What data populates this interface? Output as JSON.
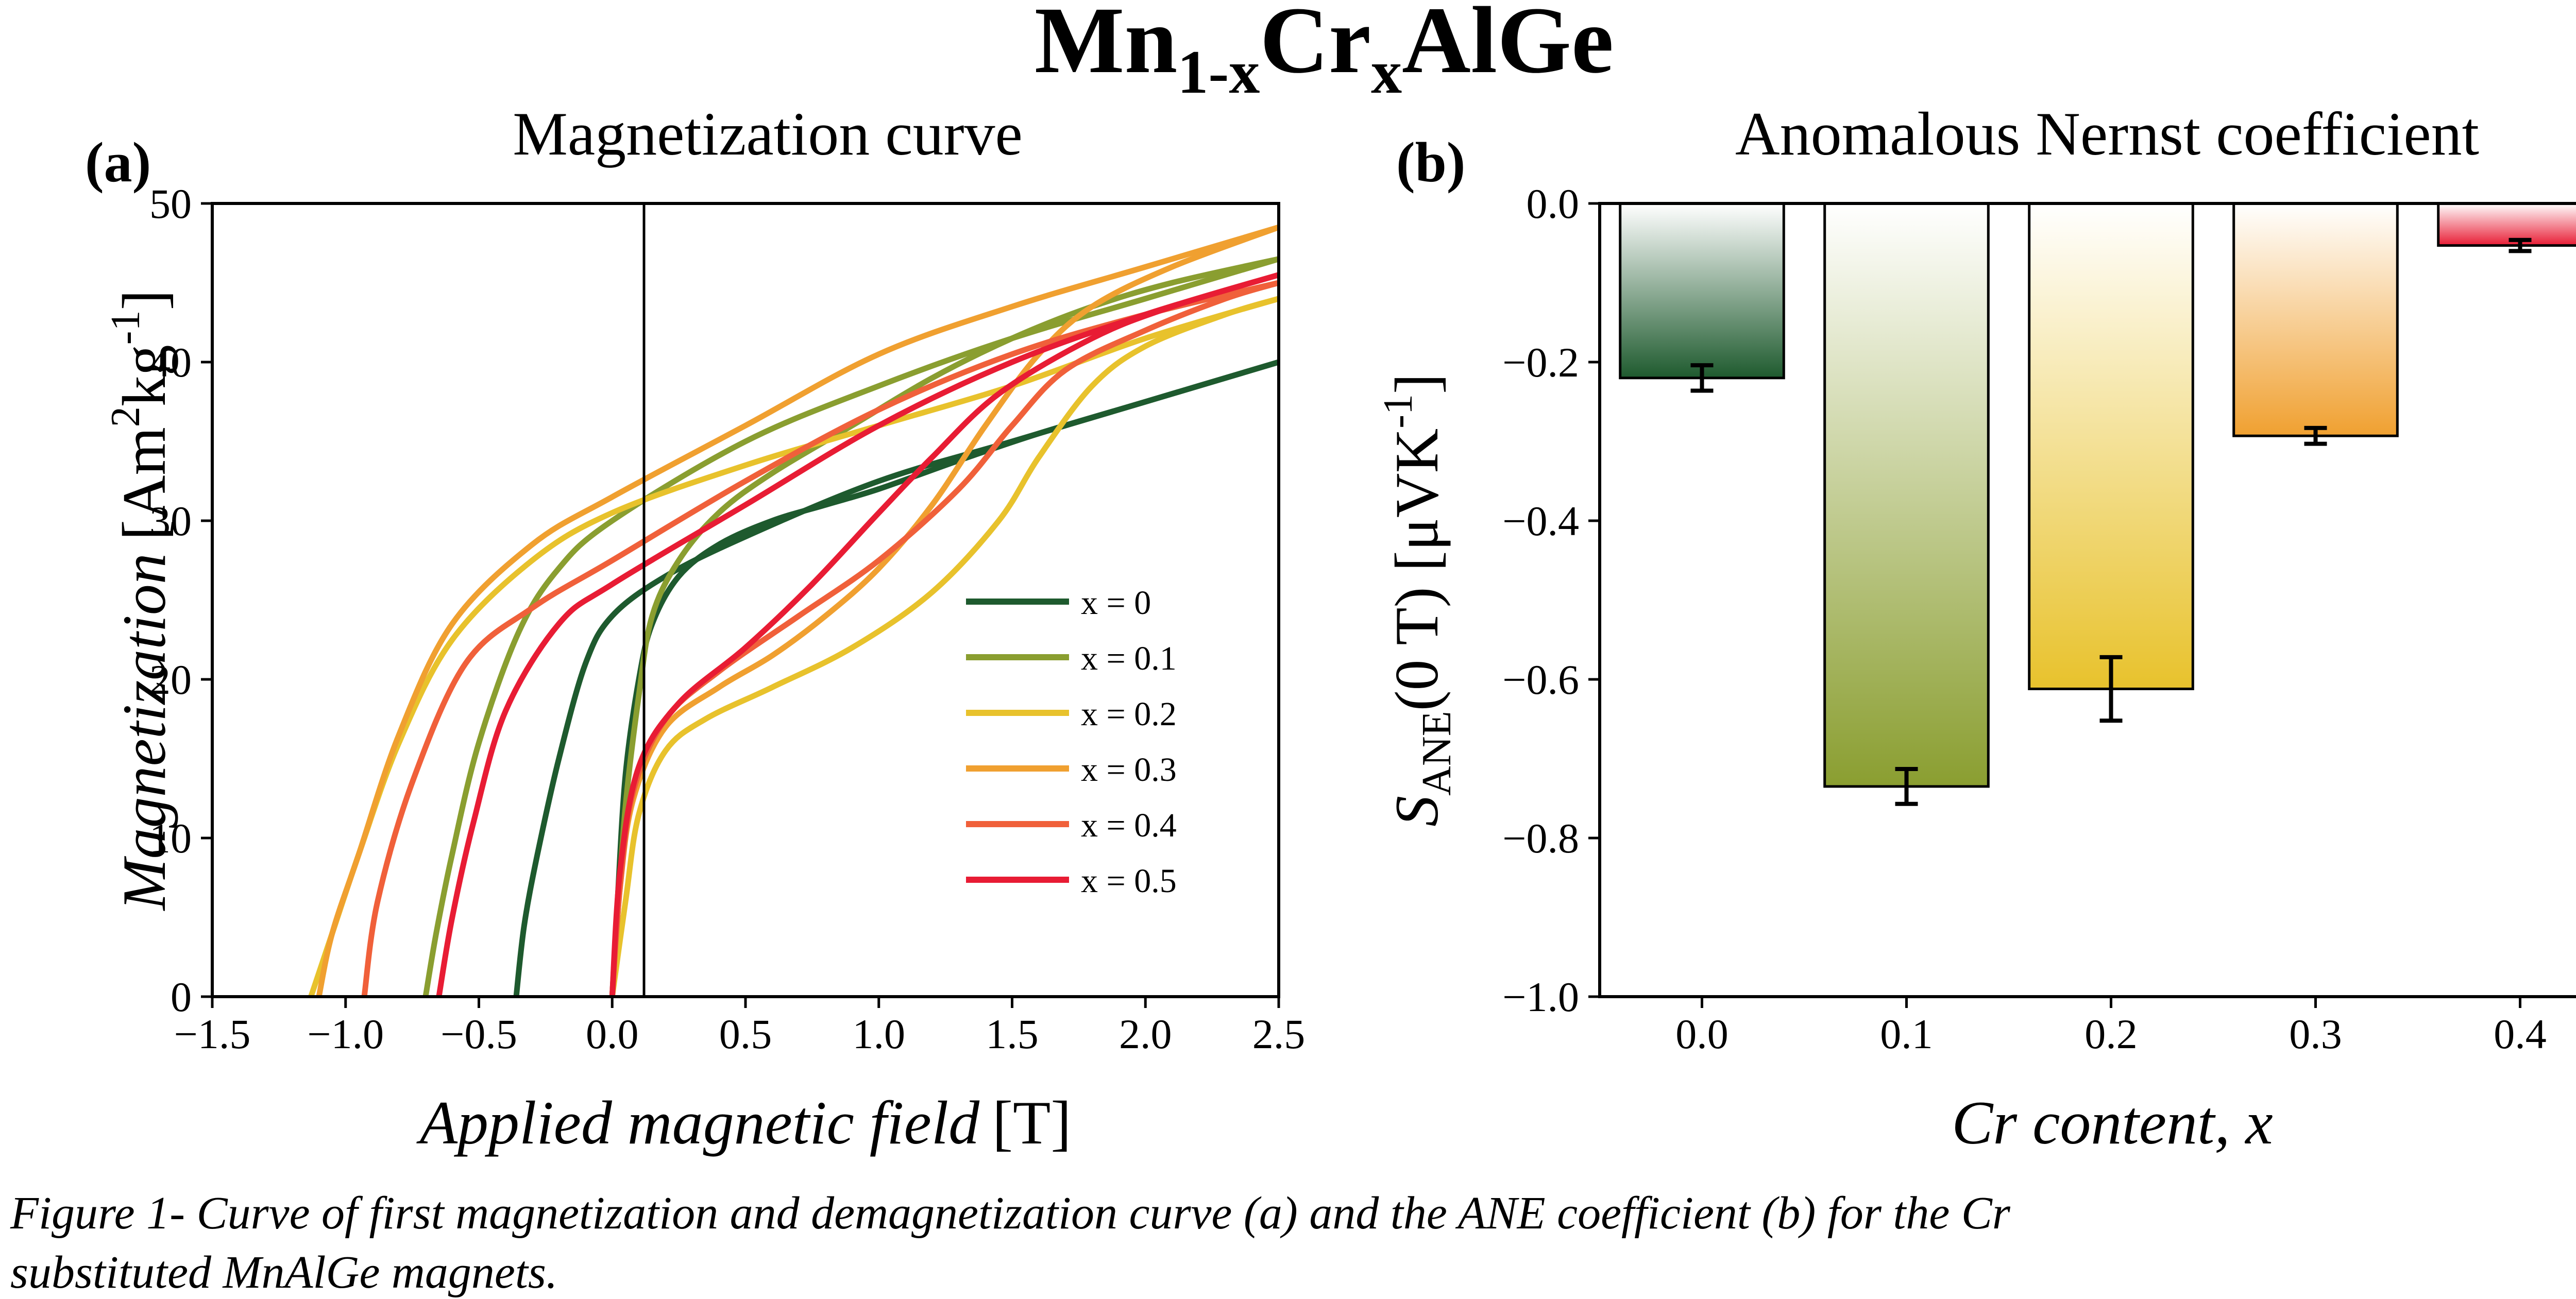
{
  "figure": {
    "title_base1": "Mn",
    "title_sub1": "1-x",
    "title_base2": "Cr",
    "title_sub2": "x",
    "title_base3": "AlGe",
    "caption_line1": "Figure 1- Curve of first magnetization and demagnetization curve (a) and the ANE coefficient (b) for the Cr",
    "caption_line2": "substituted MnAlGe magnets."
  },
  "panel_a": {
    "tag": "(a)",
    "title": "Magnetization curve",
    "xlabel_italic": "Applied magnetic field",
    "xlabel_unit": "[T]",
    "ylabel_italic": "Magnetization",
    "ylabel_unit_pre": "[Am",
    "ylabel_unit_sup1": "2",
    "ylabel_unit_mid": "kg",
    "ylabel_unit_sup2": "-1",
    "ylabel_unit_post": "]"
  },
  "panel_b": {
    "tag": "(b)",
    "title": "Anomalous Nernst coefficient",
    "xlabel": "Cr content, x",
    "ylabel_S": "S",
    "ylabel_sub": "ANE",
    "ylabel_rest": "(0 T) [μVK",
    "ylabel_sup": "-1",
    "ylabel_end": "]"
  },
  "chart_data": [
    {
      "type": "line",
      "title": "Magnetization curve",
      "xlabel": "Applied magnetic field [T]",
      "ylabel": "Magnetization [Am2kg-1]",
      "xlim": [
        -1.5,
        2.5
      ],
      "ylim": [
        0,
        50
      ],
      "xticks": [
        "−1.5",
        "−1.0",
        "−0.5",
        "0.0",
        "0.5",
        "1.0",
        "1.5",
        "2.0",
        "2.5"
      ],
      "yticks": [
        "0",
        "10",
        "20",
        "30",
        "40",
        "50"
      ],
      "legend_position": "right-middle",
      "series": [
        {
          "name": "x = 0",
          "color": "#1e5a2e",
          "initial": [
            [
              0,
              0
            ],
            [
              0.02,
              6
            ],
            [
              0.05,
              14
            ],
            [
              0.1,
              20
            ],
            [
              0.15,
              23.5
            ],
            [
              0.25,
              26.5
            ],
            [
              0.4,
              28.5
            ],
            [
              0.6,
              30
            ],
            [
              0.8,
              31
            ],
            [
              1.0,
              32
            ],
            [
              1.3,
              33.8
            ],
            [
              1.6,
              35.5
            ],
            [
              2.0,
              37.5
            ],
            [
              2.5,
              40
            ]
          ],
          "demag": [
            [
              2.5,
              40
            ],
            [
              2.0,
              37.5
            ],
            [
              1.5,
              35
            ],
            [
              1.0,
              32.5
            ],
            [
              0.5,
              29
            ],
            [
              0.2,
              26.5
            ],
            [
              0.0,
              24
            ],
            [
              -0.1,
              21
            ],
            [
              -0.2,
              15
            ],
            [
              -0.28,
              9
            ],
            [
              -0.33,
              4.5
            ],
            [
              -0.36,
              0
            ]
          ]
        },
        {
          "name": "x = 0.1",
          "color": "#8a9e30",
          "initial": [
            [
              0,
              0
            ],
            [
              0.02,
              5
            ],
            [
              0.05,
              12
            ],
            [
              0.1,
              19
            ],
            [
              0.15,
              24
            ],
            [
              0.25,
              27.5
            ],
            [
              0.4,
              30.5
            ],
            [
              0.6,
              33
            ],
            [
              0.9,
              36
            ],
            [
              1.2,
              39
            ],
            [
              1.5,
              41.5
            ],
            [
              1.8,
              43.5
            ],
            [
              2.1,
              45
            ],
            [
              2.5,
              46.5
            ]
          ],
          "demag": [
            [
              2.5,
              46.5
            ],
            [
              2.0,
              44
            ],
            [
              1.5,
              41.5
            ],
            [
              1.0,
              38.5
            ],
            [
              0.5,
              35
            ],
            [
              0.0,
              30
            ],
            [
              -0.2,
              27
            ],
            [
              -0.35,
              23
            ],
            [
              -0.5,
              16
            ],
            [
              -0.6,
              9
            ],
            [
              -0.66,
              4
            ],
            [
              -0.7,
              0
            ]
          ]
        },
        {
          "name": "x = 0.2",
          "color": "#e8c22c",
          "initial": [
            [
              0,
              0
            ],
            [
              0.05,
              6
            ],
            [
              0.1,
              11.5
            ],
            [
              0.2,
              15.5
            ],
            [
              0.35,
              17.5
            ],
            [
              0.6,
              19.5
            ],
            [
              0.9,
              22
            ],
            [
              1.2,
              25.5
            ],
            [
              1.45,
              30
            ],
            [
              1.6,
              34
            ],
            [
              1.8,
              38.5
            ],
            [
              2.0,
              41
            ],
            [
              2.3,
              43
            ],
            [
              2.5,
              44
            ]
          ],
          "demag": [
            [
              2.5,
              44
            ],
            [
              2.0,
              41.5
            ],
            [
              1.5,
              38.5
            ],
            [
              1.0,
              36
            ],
            [
              0.5,
              33.5
            ],
            [
              0.0,
              30.5
            ],
            [
              -0.3,
              27.5
            ],
            [
              -0.6,
              22.5
            ],
            [
              -0.8,
              16
            ],
            [
              -0.95,
              9
            ],
            [
              -1.05,
              4
            ],
            [
              -1.13,
              0
            ]
          ]
        },
        {
          "name": "x = 0.3",
          "color": "#f0a030",
          "initial": [
            [
              0,
              0
            ],
            [
              0.03,
              7
            ],
            [
              0.08,
              12.5
            ],
            [
              0.2,
              17
            ],
            [
              0.4,
              19.5
            ],
            [
              0.6,
              21.5
            ],
            [
              0.8,
              24
            ],
            [
              1.0,
              27
            ],
            [
              1.2,
              31
            ],
            [
              1.4,
              36
            ],
            [
              1.6,
              40.5
            ],
            [
              1.8,
              43.5
            ],
            [
              2.1,
              46
            ],
            [
              2.5,
              48.5
            ]
          ],
          "demag": [
            [
              2.5,
              48.5
            ],
            [
              2.0,
              46
            ],
            [
              1.5,
              43.5
            ],
            [
              1.0,
              40.5
            ],
            [
              0.5,
              36
            ],
            [
              0.0,
              31.5
            ],
            [
              -0.3,
              28.5
            ],
            [
              -0.6,
              23.5
            ],
            [
              -0.8,
              16.5
            ],
            [
              -0.95,
              9
            ],
            [
              -1.05,
              4
            ],
            [
              -1.1,
              0
            ]
          ]
        },
        {
          "name": "x = 0.4",
          "color": "#f0603a",
          "initial": [
            [
              0,
              0
            ],
            [
              0.03,
              7
            ],
            [
              0.08,
              13
            ],
            [
              0.2,
              17.5
            ],
            [
              0.4,
              20.5
            ],
            [
              0.7,
              24
            ],
            [
              1.0,
              27.5
            ],
            [
              1.3,
              32
            ],
            [
              1.5,
              36
            ],
            [
              1.7,
              39.5
            ],
            [
              2.0,
              42
            ],
            [
              2.3,
              44
            ],
            [
              2.5,
              45
            ]
          ],
          "demag": [
            [
              2.5,
              45
            ],
            [
              2.0,
              43
            ],
            [
              1.5,
              40.5
            ],
            [
              1.0,
              37
            ],
            [
              0.5,
              32.5
            ],
            [
              0.0,
              27.5
            ],
            [
              -0.3,
              24.5
            ],
            [
              -0.55,
              21
            ],
            [
              -0.75,
              13.5
            ],
            [
              -0.88,
              6
            ],
            [
              -0.93,
              0
            ]
          ]
        },
        {
          "name": "x = 0.5",
          "color": "#e81c34",
          "initial": [
            [
              0,
              0
            ],
            [
              0.03,
              8
            ],
            [
              0.1,
              14.5
            ],
            [
              0.25,
              18.5
            ],
            [
              0.5,
              22
            ],
            [
              0.75,
              26
            ],
            [
              1.0,
              30.5
            ],
            [
              1.2,
              34
            ],
            [
              1.45,
              38
            ],
            [
              1.8,
              41.5
            ],
            [
              2.1,
              43.5
            ],
            [
              2.5,
              45.5
            ]
          ],
          "demag": [
            [
              2.5,
              45.5
            ],
            [
              2.0,
              43
            ],
            [
              1.5,
              40
            ],
            [
              1.0,
              36
            ],
            [
              0.5,
              31
            ],
            [
              0.0,
              26
            ],
            [
              -0.2,
              23.5
            ],
            [
              -0.4,
              18
            ],
            [
              -0.52,
              11
            ],
            [
              -0.6,
              5
            ],
            [
              -0.65,
              0
            ]
          ]
        }
      ]
    },
    {
      "type": "bar",
      "title": "Anomalous Nernst coefficient",
      "xlabel": "Cr content, x",
      "ylabel": "SANE(0 T) [μVK-1]",
      "ylim": [
        -1.0,
        0.0
      ],
      "yticks": [
        "0.0",
        "−0.2",
        "−0.4",
        "−0.6",
        "−0.8",
        "−1.0"
      ],
      "categories": [
        "0.0",
        "0.1",
        "0.2",
        "0.3",
        "0.4"
      ],
      "values": [
        -0.22,
        -0.735,
        -0.612,
        -0.293,
        -0.053
      ],
      "errors": [
        0.016,
        0.022,
        0.04,
        0.01,
        0.007
      ],
      "colors": [
        "#1e5a2e",
        "#8a9e30",
        "#e8c22c",
        "#f0a030",
        "#e81c34"
      ]
    }
  ]
}
